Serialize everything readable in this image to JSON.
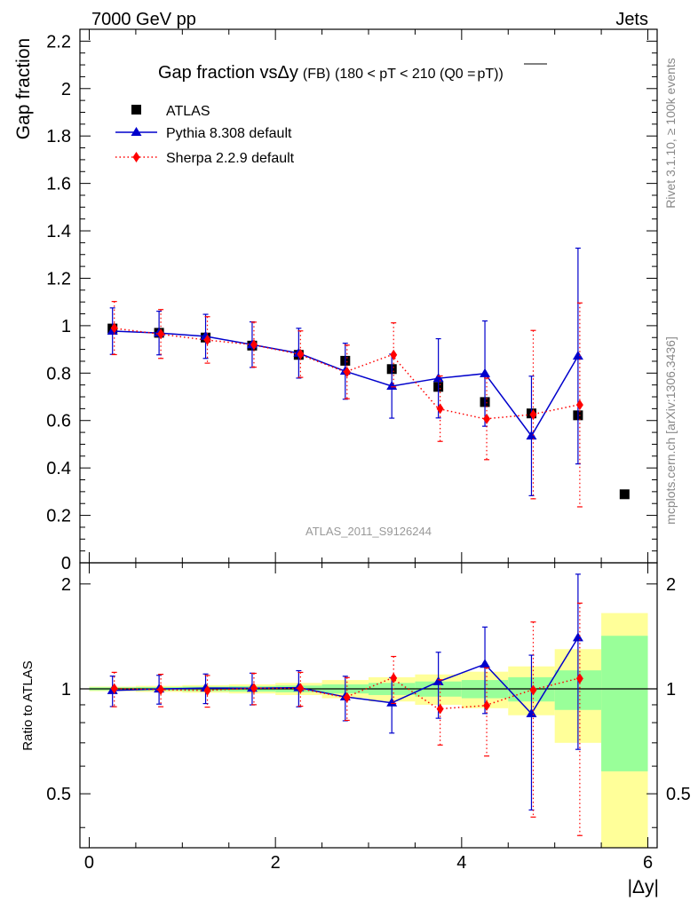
{
  "header": {
    "left": "7000 GeV pp",
    "right": "Jets"
  },
  "side_labels": {
    "rivet": "Rivet 3.1.10, ≥ 100k events",
    "mcplots": "mcplots.cern.ch [arXiv:1306.3436]"
  },
  "watermark": "ATLAS_2011_S9126244",
  "chart_data": {
    "type": "scatter",
    "title": {
      "main": "Gap fraction vsΔy",
      "small": "(FB)",
      "cut": "(180 < pT < 210 (Q0 =",
      "over": "pT",
      "close": "))"
    },
    "xlabel": "|Δy|",
    "ylabel": "Gap fraction",
    "ratio_ylabel": "Ratio to ATLAS",
    "xlim": [
      -0.1,
      6.1
    ],
    "ylim": [
      0,
      2.25
    ],
    "ratio_ylim": [
      0.35,
      2.3
    ],
    "ratio_log": true,
    "x_ticks": [
      "0",
      "2",
      "4",
      "6"
    ],
    "y_ticks": [
      "0",
      "0.2",
      "0.4",
      "0.6",
      "0.8",
      "1",
      "1.2",
      "1.4",
      "1.6",
      "1.8",
      "2",
      "2.2"
    ],
    "ratio_ticks": [
      "0.5",
      "1",
      "2"
    ],
    "legend_position": "top-left",
    "series": [
      {
        "name": "ATLAS",
        "color": "#000000",
        "marker": "square",
        "x": [
          0.25,
          0.75,
          1.25,
          1.75,
          2.25,
          2.75,
          3.25,
          3.75,
          4.25,
          4.75,
          5.25,
          5.75
        ],
        "y": [
          0.988,
          0.97,
          0.95,
          0.916,
          0.877,
          0.852,
          0.817,
          0.742,
          0.678,
          0.63,
          0.622,
          0.289
        ]
      },
      {
        "name": "Pythia 8.308 default",
        "color": "#0000cc",
        "marker": "triangle",
        "line": "solid",
        "x": [
          0.25,
          0.75,
          1.25,
          1.75,
          2.25,
          2.75,
          3.25,
          3.75,
          4.25,
          4.75,
          5.25
        ],
        "y": [
          0.977,
          0.969,
          0.955,
          0.92,
          0.884,
          0.808,
          0.745,
          0.778,
          0.798,
          0.535,
          0.872
        ],
        "err": [
          0.098,
          0.092,
          0.093,
          0.096,
          0.105,
          0.118,
          0.135,
          0.167,
          0.222,
          0.252,
          0.455
        ]
      },
      {
        "name": "Sherpa 2.2.9 default",
        "color": "#ff0000",
        "marker": "diamond",
        "line": "dotted",
        "x": [
          0.25,
          0.75,
          1.25,
          1.75,
          2.25,
          2.75,
          3.25,
          3.75,
          4.25,
          4.75,
          5.25
        ],
        "y": [
          0.99,
          0.965,
          0.94,
          0.92,
          0.88,
          0.805,
          0.877,
          0.65,
          0.607,
          0.625,
          0.666
        ],
        "err": [
          0.112,
          0.103,
          0.098,
          0.095,
          0.098,
          0.113,
          0.135,
          0.138,
          0.172,
          0.355,
          0.43
        ]
      }
    ],
    "ratio_bands": {
      "edges": [
        0.0,
        0.5,
        1.0,
        1.5,
        2.0,
        2.5,
        3.0,
        3.5,
        4.0,
        4.5,
        5.0,
        5.5,
        6.0
      ],
      "inner": [
        0.01,
        0.012,
        0.015,
        0.018,
        0.022,
        0.03,
        0.04,
        0.05,
        0.06,
        0.08,
        0.13,
        0.42
      ],
      "outer": [
        0.015,
        0.02,
        0.025,
        0.03,
        0.04,
        0.06,
        0.08,
        0.1,
        0.12,
        0.16,
        0.3,
        0.65
      ],
      "inner_color": "#99ff99",
      "outer_color": "#ffff99"
    }
  }
}
